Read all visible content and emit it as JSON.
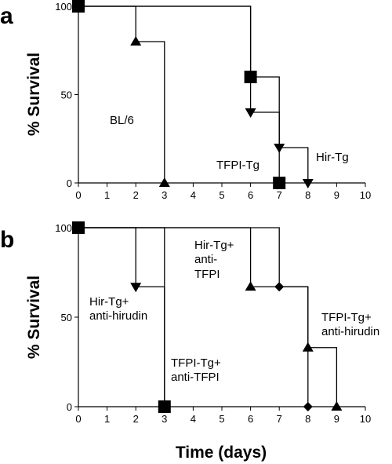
{
  "chart_data": [
    {
      "panel": "a",
      "type": "line",
      "step": true,
      "ylabel": "% Survival",
      "xlabel": "",
      "xlim": [
        0,
        10
      ],
      "ylim": [
        0,
        100
      ],
      "xticks": [
        "0",
        "1",
        "2",
        "3",
        "4",
        "5",
        "6",
        "7",
        "8",
        "9",
        "10"
      ],
      "yticks": [
        "0",
        "50",
        "100"
      ],
      "series": [
        {
          "name": "BL/6",
          "marker": "triangle-up",
          "x": [
            0,
            2,
            3
          ],
          "y": [
            100,
            80,
            0
          ]
        },
        {
          "name": "TFPI-Tg",
          "marker": "square",
          "x": [
            0,
            6,
            7
          ],
          "y": [
            100,
            60,
            0
          ]
        },
        {
          "name": "Hir-Tg",
          "marker": "triangle-down",
          "x": [
            0,
            6,
            7,
            8
          ],
          "y": [
            100,
            40,
            20,
            0
          ]
        }
      ],
      "annotations": [
        {
          "text": "BL/6",
          "series": "BL/6"
        },
        {
          "text": "TFPI-Tg",
          "series": "TFPI-Tg"
        },
        {
          "text": "Hir-Tg",
          "series": "Hir-Tg"
        }
      ]
    },
    {
      "panel": "b",
      "type": "line",
      "step": true,
      "ylabel": "% Survival",
      "xlabel": "Time (days)",
      "xlim": [
        0,
        10
      ],
      "ylim": [
        0,
        100
      ],
      "xticks": [
        "0",
        "1",
        "2",
        "3",
        "4",
        "5",
        "6",
        "7",
        "8",
        "9",
        "10"
      ],
      "yticks": [
        "0",
        "50",
        "100"
      ],
      "series": [
        {
          "name": "Hir-Tg+ anti-hirudin",
          "marker": "triangle-down",
          "x": [
            0,
            2,
            3
          ],
          "y": [
            100,
            67,
            0
          ]
        },
        {
          "name": "TFPI-Tg+ anti-TFPI",
          "marker": "square",
          "x": [
            0,
            3
          ],
          "y": [
            100,
            0
          ]
        },
        {
          "name": "Hir-Tg+ anti-TFPI",
          "marker": "triangle-up",
          "x": [
            0,
            6,
            8,
            9
          ],
          "y": [
            100,
            67,
            33,
            0
          ]
        },
        {
          "name": "TFPI-Tg+ anti-hirudin",
          "marker": "diamond",
          "x": [
            0,
            7,
            8
          ],
          "y": [
            100,
            67,
            0
          ]
        }
      ],
      "annotations": [
        {
          "lines": [
            "Hir-Tg+",
            "anti-hirudin"
          ]
        },
        {
          "lines": [
            "TFPI-Tg+",
            "anti-TFPI"
          ]
        },
        {
          "lines": [
            "Hir-Tg+",
            "anti-",
            "TFPI"
          ]
        },
        {
          "lines": [
            "TFPI-Tg+",
            "anti-hirudin"
          ]
        }
      ]
    }
  ]
}
